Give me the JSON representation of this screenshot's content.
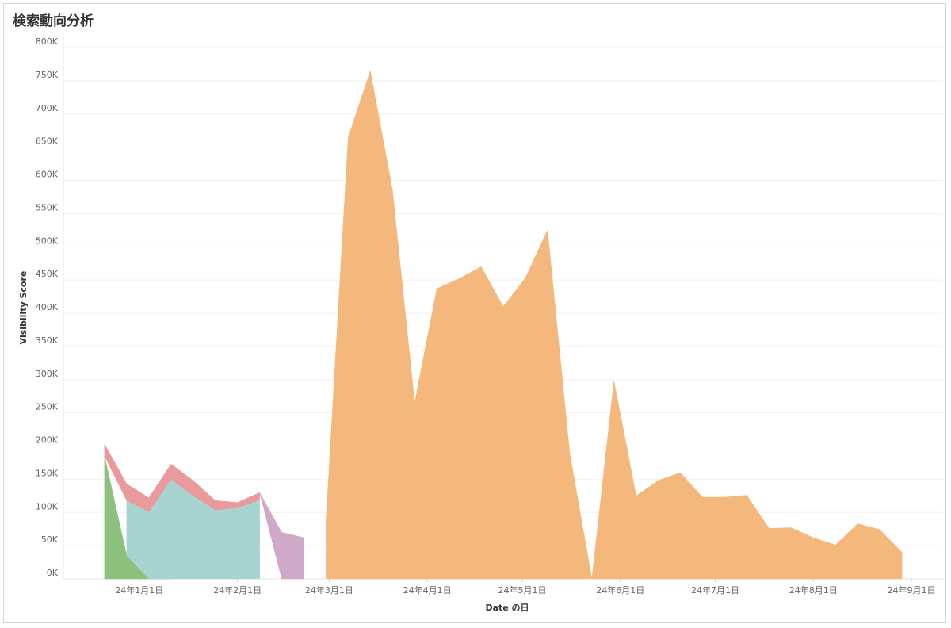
{
  "chart_data": {
    "type": "stacked_area",
    "title": "検索動向分析",
    "y_label": "Visibility Score",
    "x_label": "Date の日",
    "x": [
      "2023-12-21",
      "2023-12-28",
      "2024-01-04",
      "2024-01-11",
      "2024-01-18",
      "2024-01-25",
      "2024-02-01",
      "2024-02-08",
      "2024-02-15",
      "2024-02-22",
      "2024-02-29",
      "2024-03-07",
      "2024-03-14",
      "2024-03-21",
      "2024-03-28",
      "2024-04-04",
      "2024-04-11",
      "2024-04-18",
      "2024-04-25",
      "2024-05-02",
      "2024-05-09",
      "2024-05-16",
      "2024-05-23",
      "2024-05-30",
      "2024-06-06",
      "2024-06-13",
      "2024-06-20",
      "2024-06-27",
      "2024-07-04",
      "2024-07-11",
      "2024-07-18",
      "2024-07-25",
      "2024-08-01",
      "2024-08-08",
      "2024-08-15",
      "2024-08-22",
      "2024-08-29"
    ],
    "series": [
      {
        "color": "#8dc17d",
        "values": [
          185000,
          35000,
          0,
          0,
          null,
          null,
          null,
          null,
          null,
          null,
          null,
          null,
          null,
          null,
          null,
          null,
          null,
          null,
          null,
          null,
          null,
          null,
          null,
          null,
          null,
          null,
          null,
          null,
          null,
          null,
          null,
          null,
          null,
          null,
          null,
          null,
          null
        ]
      },
      {
        "color": "#a7d3d0",
        "values": [
          null,
          83000,
          101000,
          150000,
          125000,
          104000,
          107000,
          119000,
          null,
          null,
          null,
          null,
          null,
          null,
          null,
          null,
          null,
          null,
          null,
          null,
          null,
          null,
          null,
          null,
          null,
          null,
          null,
          null,
          null,
          null,
          null,
          null,
          null,
          null,
          null,
          null,
          null
        ]
      },
      {
        "color": "#ea9a9a",
        "values": [
          18000,
          25000,
          21000,
          23000,
          23000,
          14000,
          8000,
          11000,
          null,
          null,
          null,
          null,
          null,
          null,
          null,
          null,
          null,
          null,
          null,
          null,
          null,
          null,
          null,
          null,
          null,
          null,
          null,
          null,
          null,
          null,
          null,
          null,
          null,
          null,
          null,
          null,
          null
        ]
      },
      {
        "color": "#cfa9c8",
        "values": [
          null,
          null,
          null,
          null,
          null,
          null,
          null,
          0,
          70000,
          62000,
          null,
          null,
          null,
          null,
          null,
          null,
          null,
          null,
          null,
          null,
          null,
          null,
          null,
          null,
          null,
          null,
          null,
          null,
          null,
          null,
          null,
          null,
          null,
          null,
          null,
          null,
          null
        ]
      },
      {
        "color": "#f4b77c",
        "values": [
          null,
          null,
          null,
          null,
          null,
          null,
          null,
          null,
          null,
          null,
          87000,
          665000,
          765000,
          585000,
          265000,
          437000,
          452000,
          470000,
          410000,
          453000,
          525000,
          190000,
          0,
          298000,
          125000,
          148000,
          160000,
          123000,
          123000,
          126000,
          76000,
          77000,
          62000,
          51000,
          83000,
          74000,
          40000
        ]
      }
    ],
    "xlim": [
      "2023-12-08",
      "2024-09-11"
    ],
    "xticks": [
      {
        "value": "2024-01-01",
        "label": "24年1月1日"
      },
      {
        "value": "2024-02-01",
        "label": "24年2月1日"
      },
      {
        "value": "2024-03-01",
        "label": "24年3月1日"
      },
      {
        "value": "2024-04-01",
        "label": "24年4月1日"
      },
      {
        "value": "2024-05-01",
        "label": "24年5月1日"
      },
      {
        "value": "2024-06-01",
        "label": "24年6月1日"
      },
      {
        "value": "2024-07-01",
        "label": "24年7月1日"
      },
      {
        "value": "2024-08-01",
        "label": "24年8月1日"
      },
      {
        "value": "2024-09-01",
        "label": "24年9月1日"
      }
    ],
    "ylim": [
      0,
      800000
    ],
    "yticks": [
      {
        "value": 0,
        "label": "0K"
      },
      {
        "value": 50000,
        "label": "50K"
      },
      {
        "value": 100000,
        "label": "100K"
      },
      {
        "value": 150000,
        "label": "150K"
      },
      {
        "value": 200000,
        "label": "200K"
      },
      {
        "value": 250000,
        "label": "250K"
      },
      {
        "value": 300000,
        "label": "300K"
      },
      {
        "value": 350000,
        "label": "350K"
      },
      {
        "value": 400000,
        "label": "400K"
      },
      {
        "value": 450000,
        "label": "450K"
      },
      {
        "value": 500000,
        "label": "500K"
      },
      {
        "value": 550000,
        "label": "550K"
      },
      {
        "value": 600000,
        "label": "600K"
      },
      {
        "value": 650000,
        "label": "650K"
      },
      {
        "value": 700000,
        "label": "700K"
      },
      {
        "value": 750000,
        "label": "750K"
      },
      {
        "value": 800000,
        "label": "800K"
      }
    ],
    "grid": true
  }
}
